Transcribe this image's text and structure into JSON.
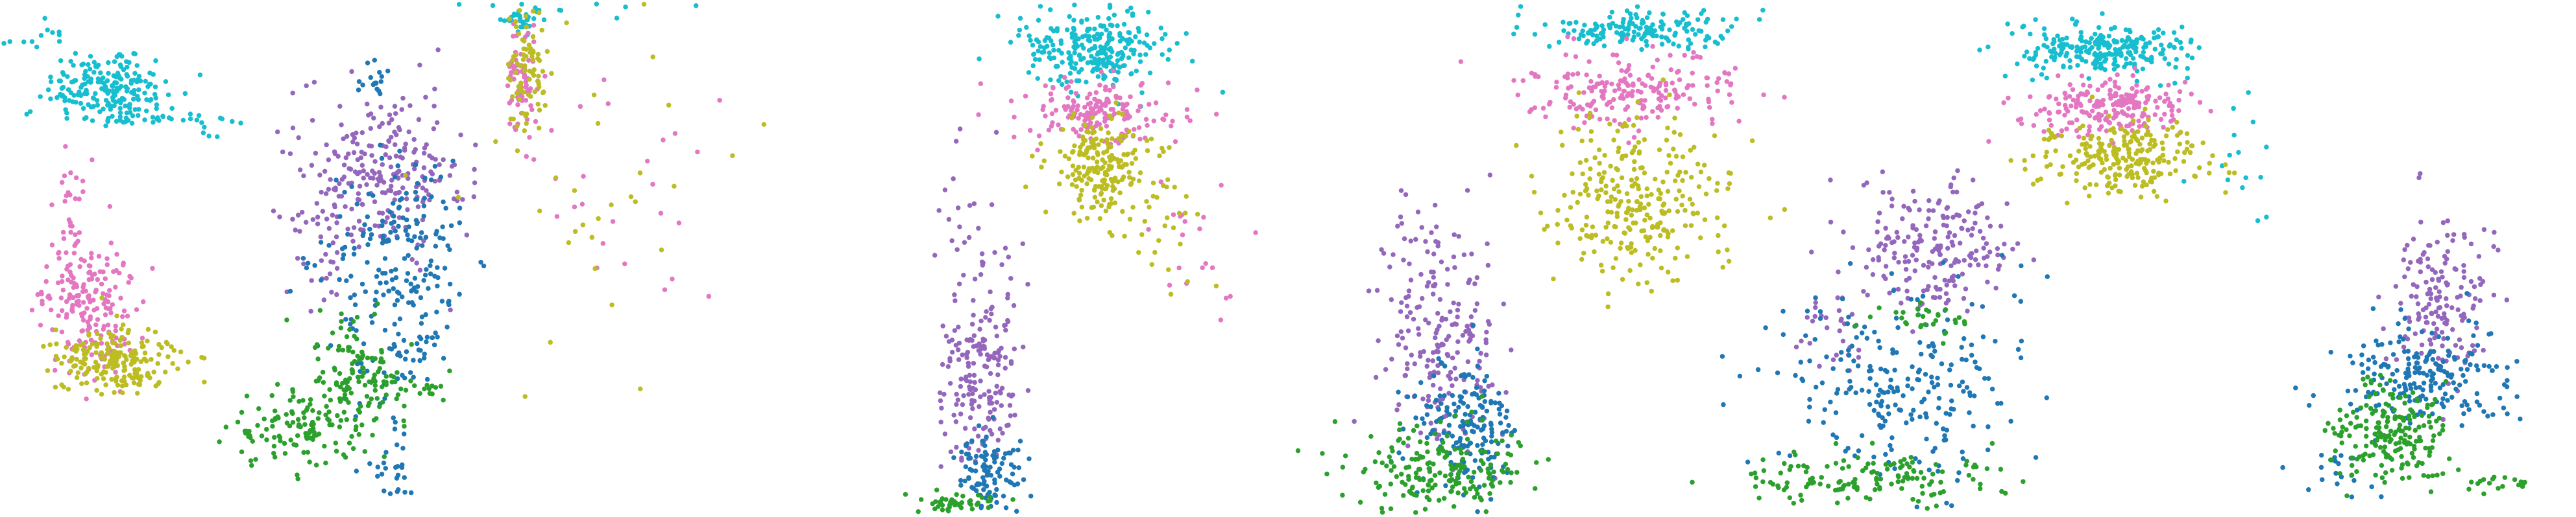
{
  "palette": {
    "cyan": "#17becf",
    "pink": "#e377c2",
    "olive": "#bcbd22",
    "purple": "#9467bd",
    "blue": "#1f77b4",
    "green": "#2ca02c"
  },
  "chart_data": [
    {
      "type": "scatter",
      "axes": "hidden",
      "grid": false,
      "legend": "none",
      "xlim": [
        0,
        1590
      ],
      "ylim": [
        0,
        318
      ],
      "series": [
        {
          "color": "cyan",
          "clusters": [
            {
              "cx": 68,
              "cy": 55,
              "sx": 20,
              "sy": 13,
              "n": 220
            },
            {
              "cx": 118,
              "cy": 74,
              "sx": 18,
              "sy": 4,
              "n": 18
            },
            {
              "cx": 22,
              "cy": 20,
              "sx": 9,
              "sy": 5,
              "n": 12
            }
          ]
        },
        {
          "color": "pink",
          "clusters": [
            {
              "cx": 55,
              "cy": 190,
              "sx": 14,
              "sy": 22,
              "n": 180
            },
            {
              "cx": 46,
              "cy": 140,
              "sx": 6,
              "sy": 20,
              "n": 40
            }
          ]
        },
        {
          "color": "olive",
          "clusters": [
            {
              "cx": 72,
              "cy": 222,
              "sx": 18,
              "sy": 10,
              "n": 200
            }
          ]
        },
        {
          "color": "purple",
          "clusters": [
            {
              "cx": 235,
              "cy": 105,
              "sx": 26,
              "sy": 25,
              "n": 230
            },
            {
              "cx": 200,
              "cy": 140,
              "sx": 10,
              "sy": 30,
              "n": 40
            }
          ]
        },
        {
          "color": "blue",
          "clusters": [
            {
              "cx": 248,
              "cy": 170,
              "sx": 22,
              "sy": 38,
              "n": 230
            },
            {
              "cx": 240,
              "cy": 290,
              "sx": 10,
              "sy": 14,
              "n": 30
            },
            {
              "cx": 232,
              "cy": 50,
              "sx": 6,
              "sy": 6,
              "n": 18
            }
          ]
        },
        {
          "color": "green",
          "clusters": [
            {
              "cx": 222,
              "cy": 235,
              "sx": 14,
              "sy": 18,
              "n": 140
            },
            {
              "cx": 180,
              "cy": 265,
              "sx": 20,
              "sy": 12,
              "n": 110
            },
            {
              "cx": 265,
              "cy": 240,
              "sx": 6,
              "sy": 4,
              "n": 12
            }
          ]
        }
      ]
    },
    {
      "type": "scatter",
      "axes": "hidden",
      "grid": false,
      "legend": "none",
      "xlim": [
        0,
        1590
      ],
      "ylim": [
        0,
        318
      ],
      "series": [
        {
          "color": "cyan",
          "clusters": [
            {
              "cx": 322,
              "cy": 10,
              "sx": 6,
              "sy": 4,
              "n": 35
            },
            {
              "cx": 395,
              "cy": 6,
              "sx": 70,
              "sy": 4,
              "n": 10
            }
          ]
        },
        {
          "color": "pink",
          "clusters": [
            {
              "cx": 322,
              "cy": 48,
              "sx": 5,
              "sy": 20,
              "n": 70
            },
            {
              "cx": 380,
              "cy": 110,
              "sx": 35,
              "sy": 40,
              "n": 25
            }
          ]
        },
        {
          "color": "olive",
          "clusters": [
            {
              "cx": 325,
              "cy": 45,
              "sx": 6,
              "sy": 20,
              "n": 80
            },
            {
              "cx": 370,
              "cy": 120,
              "sx": 40,
              "sy": 50,
              "n": 30
            }
          ]
        },
        {
          "color": "purple",
          "clusters": [
            {
              "cx": 605,
              "cy": 232,
              "sx": 12,
              "sy": 30,
              "n": 180
            },
            {
              "cx": 600,
              "cy": 140,
              "sx": 12,
              "sy": 30,
              "n": 30
            }
          ]
        },
        {
          "color": "blue",
          "clusters": [
            {
              "cx": 612,
              "cy": 292,
              "sx": 10,
              "sy": 12,
              "n": 100
            }
          ]
        },
        {
          "color": "green",
          "clusters": [
            {
              "cx": 590,
              "cy": 310,
              "sx": 18,
              "sy": 3,
              "n": 45
            }
          ]
        }
      ]
    },
    {
      "type": "scatter",
      "axes": "hidden",
      "grid": false,
      "legend": "none",
      "xlim": [
        0,
        1590
      ],
      "ylim": [
        0,
        318
      ],
      "series": [
        {
          "color": "cyan",
          "clusters": [
            {
              "cx": 675,
              "cy": 30,
              "sx": 22,
              "sy": 12,
              "n": 260
            }
          ]
        },
        {
          "color": "pink",
          "clusters": [
            {
              "cx": 678,
              "cy": 68,
              "sx": 24,
              "sy": 10,
              "n": 170
            },
            {
              "cx": 740,
              "cy": 150,
              "sx": 22,
              "sy": 22,
              "n": 20
            }
          ]
        },
        {
          "color": "olive",
          "clusters": [
            {
              "cx": 680,
              "cy": 102,
              "sx": 17,
              "sy": 16,
              "n": 200
            },
            {
              "cx": 720,
              "cy": 140,
              "sx": 16,
              "sy": 16,
              "n": 25
            }
          ]
        },
        {
          "color": "purple",
          "clusters": [
            {
              "cx": 890,
              "cy": 210,
              "sx": 18,
              "sy": 30,
              "n": 190
            },
            {
              "cx": 870,
              "cy": 150,
              "sx": 14,
              "sy": 18,
              "n": 25
            }
          ]
        },
        {
          "color": "blue",
          "clusters": [
            {
              "cx": 906,
              "cy": 262,
              "sx": 16,
              "sy": 18,
              "n": 170
            }
          ]
        },
        {
          "color": "green",
          "clusters": [
            {
              "cx": 888,
              "cy": 290,
              "sx": 26,
              "sy": 13,
              "n": 190
            }
          ]
        }
      ]
    },
    {
      "type": "scatter",
      "axes": "hidden",
      "grid": false,
      "legend": "none",
      "xlim": [
        0,
        1590
      ],
      "ylim": [
        0,
        318
      ],
      "series": [
        {
          "color": "cyan",
          "clusters": [
            {
              "cx": 1010,
              "cy": 18,
              "sx": 30,
              "sy": 6,
              "n": 160
            }
          ]
        },
        {
          "color": "pink",
          "clusters": [
            {
              "cx": 1010,
              "cy": 55,
              "sx": 30,
              "sy": 12,
              "n": 200
            }
          ]
        },
        {
          "color": "olive",
          "clusters": [
            {
              "cx": 1010,
              "cy": 120,
              "sx": 28,
              "sy": 25,
              "n": 280
            }
          ]
        },
        {
          "color": "purple",
          "clusters": [
            {
              "cx": 1195,
              "cy": 150,
              "sx": 25,
              "sy": 20,
              "n": 200
            },
            {
              "cx": 1130,
              "cy": 205,
              "sx": 12,
              "sy": 15,
              "n": 30
            }
          ]
        },
        {
          "color": "blue",
          "clusters": [
            {
              "cx": 1175,
              "cy": 240,
              "sx": 38,
              "sy": 28,
              "n": 240
            }
          ]
        },
        {
          "color": "green",
          "clusters": [
            {
              "cx": 1150,
              "cy": 295,
              "sx": 40,
              "sy": 8,
              "n": 140
            },
            {
              "cx": 1185,
              "cy": 195,
              "sx": 20,
              "sy": 5,
              "n": 30
            }
          ]
        }
      ]
    },
    {
      "type": "scatter",
      "axes": "hidden",
      "grid": false,
      "legend": "none",
      "xlim": [
        0,
        1590
      ],
      "ylim": [
        0,
        318
      ],
      "series": [
        {
          "color": "cyan",
          "clusters": [
            {
              "cx": 1300,
              "cy": 30,
              "sx": 25,
              "sy": 8,
              "n": 250
            },
            {
              "cx": 1380,
              "cy": 105,
              "sx": 10,
              "sy": 20,
              "n": 15
            }
          ]
        },
        {
          "color": "pink",
          "clusters": [
            {
              "cx": 1305,
              "cy": 65,
              "sx": 24,
              "sy": 10,
              "n": 210
            }
          ]
        },
        {
          "color": "olive",
          "clusters": [
            {
              "cx": 1308,
              "cy": 98,
              "sx": 24,
              "sy": 11,
              "n": 230
            }
          ]
        },
        {
          "color": "purple",
          "clusters": [
            {
              "cx": 1505,
              "cy": 185,
              "sx": 16,
              "sy": 25,
              "n": 160
            }
          ]
        },
        {
          "color": "blue",
          "clusters": [
            {
              "cx": 1495,
              "cy": 232,
              "sx": 28,
              "sy": 15,
              "n": 200
            },
            {
              "cx": 1450,
              "cy": 290,
              "sx": 14,
              "sy": 10,
              "n": 20
            }
          ]
        },
        {
          "color": "green",
          "clusters": [
            {
              "cx": 1475,
              "cy": 265,
              "sx": 18,
              "sy": 16,
              "n": 200
            },
            {
              "cx": 1545,
              "cy": 300,
              "sx": 10,
              "sy": 4,
              "n": 18
            }
          ]
        }
      ]
    }
  ]
}
